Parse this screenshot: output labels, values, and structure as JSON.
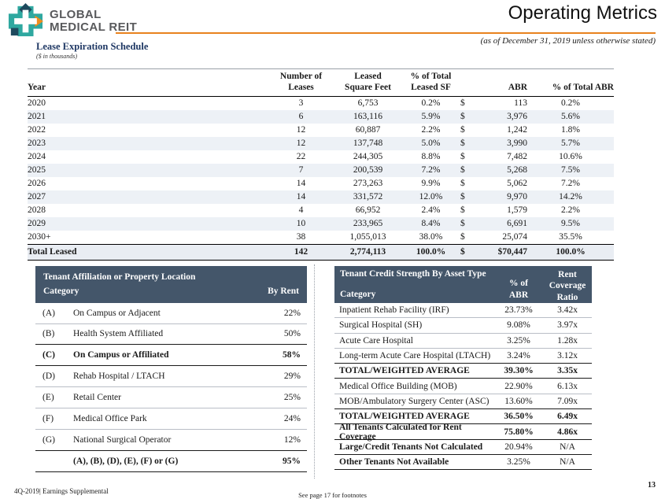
{
  "colors": {
    "slate": "#44566a",
    "orange": "#e8821e",
    "teal": "#2fa8a0",
    "logo-navy": "#1e4a5e",
    "title-navy": "#1f3864",
    "alt-row": "#edf1f6",
    "total-bg": "#e9edf3",
    "light-rule": "#b9bec6",
    "logo-gray": "#595a5c"
  },
  "header": {
    "logo_line1": "GLOBAL",
    "logo_line2": "MEDICAL REIT",
    "page_title": "Operating Metrics",
    "as_of": "(as of December 31, 2019 unless otherwise stated)"
  },
  "lease_table": {
    "title": "Lease Expiration Schedule",
    "subtitle": "($ in thousands)",
    "currency": "$",
    "columns": {
      "year": "Year",
      "leases": {
        "l1": "Number of",
        "l2": "Leases"
      },
      "sf": {
        "l1": "Leased",
        "l2": "Square Feet"
      },
      "pct_sf": {
        "l1": "% of Total",
        "l2": "Leased SF"
      },
      "abr": "ABR",
      "pct_abr": "% of Total ABR"
    },
    "rows": [
      {
        "year": "2020",
        "leases": "3",
        "sf": "6,753",
        "pct_sf": "0.2%",
        "abr": "113",
        "pct_abr": "0.2%"
      },
      {
        "year": "2021",
        "leases": "6",
        "sf": "163,116",
        "pct_sf": "5.9%",
        "abr": "3,976",
        "pct_abr": "5.6%"
      },
      {
        "year": "2022",
        "leases": "12",
        "sf": "60,887",
        "pct_sf": "2.2%",
        "abr": "1,242",
        "pct_abr": "1.8%"
      },
      {
        "year": "2023",
        "leases": "12",
        "sf": "137,748",
        "pct_sf": "5.0%",
        "abr": "3,990",
        "pct_abr": "5.7%"
      },
      {
        "year": "2024",
        "leases": "22",
        "sf": "244,305",
        "pct_sf": "8.8%",
        "abr": "7,482",
        "pct_abr": "10.6%"
      },
      {
        "year": "2025",
        "leases": "7",
        "sf": "200,539",
        "pct_sf": "7.2%",
        "abr": "5,268",
        "pct_abr": "7.5%"
      },
      {
        "year": "2026",
        "leases": "14",
        "sf": "273,263",
        "pct_sf": "9.9%",
        "abr": "5,062",
        "pct_abr": "7.2%"
      },
      {
        "year": "2027",
        "leases": "14",
        "sf": "331,572",
        "pct_sf": "12.0%",
        "abr": "9,970",
        "pct_abr": "14.2%"
      },
      {
        "year": "2028",
        "leases": "4",
        "sf": "66,952",
        "pct_sf": "2.4%",
        "abr": "1,579",
        "pct_abr": "2.2%"
      },
      {
        "year": "2029",
        "leases": "10",
        "sf": "233,965",
        "pct_sf": "8.4%",
        "abr": "6,691",
        "pct_abr": "9.5%"
      },
      {
        "year": "2030+",
        "leases": "38",
        "sf": "1,055,013",
        "pct_sf": "38.0%",
        "abr": "25,074",
        "pct_abr": "35.5%"
      }
    ],
    "total": {
      "label": "Total Leased",
      "leases": "142",
      "sf": "2,774,113",
      "pct_sf": "100.0%",
      "abr": "$70,447",
      "pct_abr": "100.0%"
    }
  },
  "affiliation_table": {
    "title": "Tenant Affiliation or Property Location",
    "category_header": "Category",
    "value_header": "By Rent",
    "rows": [
      {
        "letter": "(A)",
        "label": "On Campus or Adjacent",
        "value": "22%",
        "emphasis": false
      },
      {
        "letter": "(B)",
        "label": "Health System Affiliated",
        "value": "50%",
        "emphasis": false
      },
      {
        "letter": "(C)",
        "label": "On Campus or Affiliated",
        "value": "58%",
        "emphasis": true
      },
      {
        "letter": "(D)",
        "label": "Rehab Hospital / LTACH",
        "value": "29%",
        "emphasis": false
      },
      {
        "letter": "(E)",
        "label": "Retail Center",
        "value": "25%",
        "emphasis": false
      },
      {
        "letter": "(F)",
        "label": "Medical Office Park",
        "value": "24%",
        "emphasis": false
      },
      {
        "letter": "(G)",
        "label": "National Surgical Operator",
        "value": "12%",
        "emphasis": false
      },
      {
        "letter": "",
        "label": "(A), (B), (D), (E), (F) or (G)",
        "value": "95%",
        "emphasis": true
      }
    ]
  },
  "credit_table": {
    "title": "Tenant Credit Strength By Asset Type",
    "category_header": "Category",
    "pct_header": {
      "l1": "% of",
      "l2": "ABR"
    },
    "ratio_header": {
      "l1": "Rent",
      "l2": "Coverage",
      "l3": "Ratio"
    },
    "rows": [
      {
        "label": "Inpatient Rehab Facility (IRF)",
        "pct": "23.73%",
        "ratio": "3.42x",
        "emphasis": "none"
      },
      {
        "label": "Surgical Hospital (SH)",
        "pct": "9.08%",
        "ratio": "3.97x",
        "emphasis": "none"
      },
      {
        "label": "Acute Care Hospital",
        "pct": "3.25%",
        "ratio": "1.28x",
        "emphasis": "none"
      },
      {
        "label": "Long-term Acute Care Hospital (LTACH)",
        "pct": "3.24%",
        "ratio": "3.12x",
        "emphasis": "none"
      },
      {
        "label": "TOTAL/WEIGHTED AVERAGE",
        "pct": "39.30%",
        "ratio": "3.35x",
        "emphasis": "full"
      },
      {
        "label": "Medical Office Building (MOB)",
        "pct": "22.90%",
        "ratio": "6.13x",
        "emphasis": "none"
      },
      {
        "label": "MOB/Ambulatory Surgery Center (ASC)",
        "pct": "13.60%",
        "ratio": "7.09x",
        "emphasis": "none"
      },
      {
        "label": "TOTAL/WEIGHTED AVERAGE",
        "pct": "36.50%",
        "ratio": "6.49x",
        "emphasis": "full"
      },
      {
        "label": "All Tenants Calculated for Rent Coverage",
        "pct": "75.80%",
        "ratio": "4.86x",
        "emphasis": "full"
      },
      {
        "label": "Large/Credit Tenants Not Calculated",
        "pct": "20.94%",
        "ratio": "N/A",
        "emphasis": "label"
      },
      {
        "label": "Other Tenants Not Available",
        "pct": "3.25%",
        "ratio": "N/A",
        "emphasis": "label"
      }
    ]
  },
  "footer": {
    "left": "4Q-2019|  Earnings Supplemental",
    "center": "See page 17 for footnotes",
    "page": "13"
  }
}
